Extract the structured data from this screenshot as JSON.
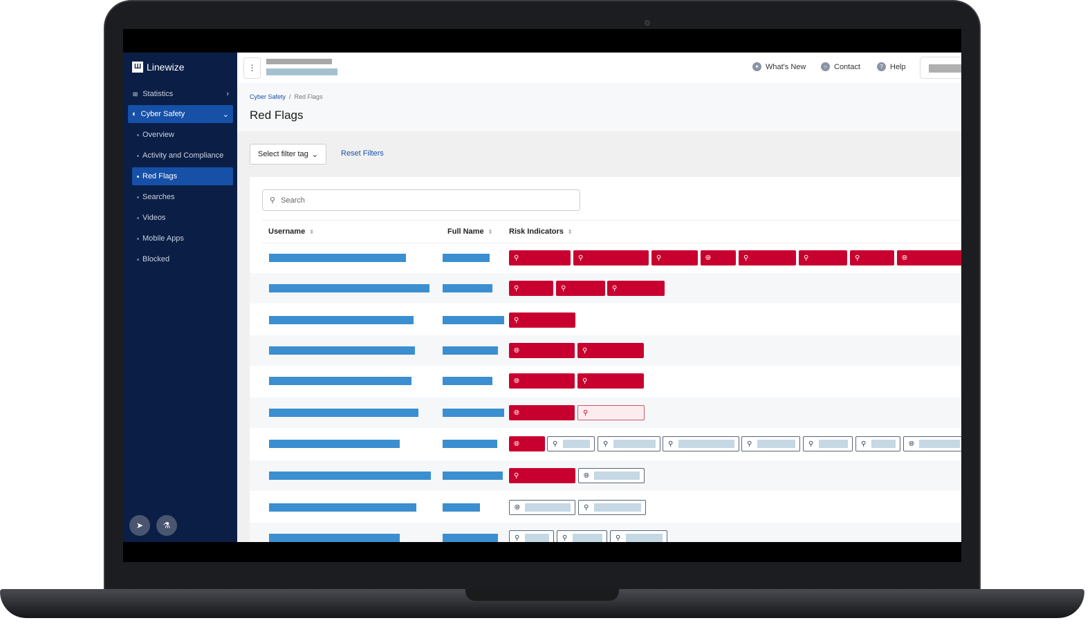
{
  "app": {
    "brand": "Linewize"
  },
  "sidebar": {
    "items": [
      {
        "label": "Statistics",
        "icon": "chart-icon"
      },
      {
        "label": "Cyber Safety",
        "icon": "shield-icon",
        "active": true
      }
    ],
    "sub_items": [
      {
        "label": "Overview"
      },
      {
        "label": "Activity and Compliance"
      },
      {
        "label": "Red Flags",
        "active": true
      },
      {
        "label": "Searches"
      },
      {
        "label": "Videos"
      },
      {
        "label": "Mobile Apps"
      },
      {
        "label": "Blocked"
      }
    ]
  },
  "topbar": {
    "whats_new": "What's New",
    "contact": "Contact",
    "help": "Help"
  },
  "breadcrumb": {
    "parent": "Cyber Safety",
    "current": "Red Flags"
  },
  "page_title": "Red Flags",
  "filters": {
    "select_tag": "Select filter tag",
    "reset": "Reset Filters"
  },
  "search": {
    "placeholder": "Search"
  },
  "table": {
    "columns": [
      "Username",
      "Full Name",
      "Risk Indicators"
    ],
    "rows": [
      {
        "tags": [
          [
            "search",
            "red"
          ],
          [
            "search",
            "red"
          ],
          [
            "search",
            "red"
          ],
          [
            "globe",
            "red"
          ],
          [
            "search",
            "red"
          ],
          [
            "search",
            "red"
          ],
          [
            "search",
            "red"
          ],
          [
            "globe",
            "red"
          ]
        ]
      },
      {
        "tags": [
          [
            "search",
            "red"
          ],
          [
            "search",
            "red"
          ],
          [
            "search",
            "red"
          ]
        ]
      },
      {
        "tags": [
          [
            "search",
            "red"
          ]
        ]
      },
      {
        "tags": [
          [
            "globe",
            "red"
          ],
          [
            "search",
            "red"
          ]
        ]
      },
      {
        "tags": [
          [
            "globe",
            "red"
          ],
          [
            "search",
            "red"
          ]
        ]
      },
      {
        "tags": [
          [
            "globe",
            "red"
          ],
          [
            "search",
            "pink"
          ]
        ]
      },
      {
        "tags": [
          [
            "globe",
            "red"
          ],
          [
            "search",
            "outline"
          ],
          [
            "search",
            "outline"
          ],
          [
            "search",
            "outline"
          ],
          [
            "search",
            "outline"
          ],
          [
            "search",
            "outline"
          ],
          [
            "search",
            "outline"
          ],
          [
            "globe",
            "outline"
          ]
        ]
      },
      {
        "tags": [
          [
            "search",
            "red"
          ],
          [
            "globe",
            "outline"
          ]
        ]
      },
      {
        "tags": [
          [
            "globe",
            "outline"
          ],
          [
            "search",
            "outline"
          ]
        ]
      },
      {
        "tags": [
          [
            "search",
            "outline"
          ],
          [
            "search",
            "outline"
          ],
          [
            "search",
            "outline"
          ]
        ]
      }
    ]
  },
  "colors": {
    "sidebar": "#0b1e45",
    "active": "#1650a7",
    "flag_red": "#c8002f",
    "bar_blue": "#3b8fd0"
  }
}
